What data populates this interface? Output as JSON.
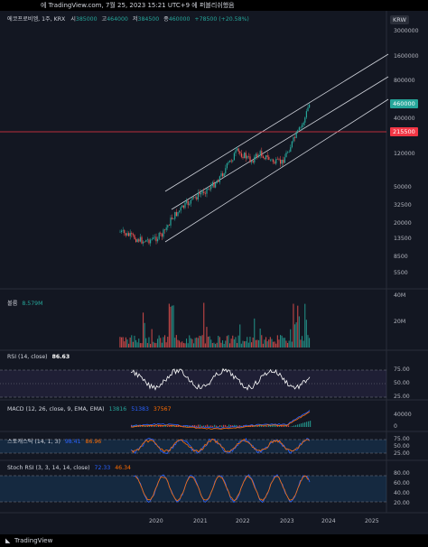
{
  "header": {
    "text": "에 TradingView.com, 7월 25, 2023 15:21 UTC+9 에 퍼블리쉬했음"
  },
  "main_legend": {
    "symbol": "에코프로비엠, 1주, KRX",
    "o_label": "시",
    "o_value": "385000",
    "h_label": "고",
    "h_value": "464000",
    "l_label": "저",
    "l_value": "384500",
    "c_label": "종",
    "c_value": "460000",
    "change": "+78500 (+20.58%)"
  },
  "currency": "KRW",
  "price_axis": [
    "3000000",
    "1600000",
    "800000",
    "400000",
    "200000",
    "120000",
    "50000",
    "32500",
    "20000",
    "13500",
    "8500",
    "5500"
  ],
  "last_price_tag": "460000",
  "hline_tag": "215500",
  "volume": {
    "label": "볼륨",
    "value": "8.579M",
    "axis": [
      "40M",
      "20M"
    ]
  },
  "rsi": {
    "label": "RSI (14, close)",
    "value": "86.63",
    "axis": [
      "75.00",
      "50.00",
      "25.00"
    ]
  },
  "macd": {
    "label": "MACD (12, 26, close, 9, EMA, EMA)",
    "v1": "13816",
    "v2": "51383",
    "v3": "37567",
    "axis": [
      "40000",
      "0"
    ]
  },
  "stoch": {
    "label": "스토캐스틱 (14, 1, 3)",
    "v1": "98.41",
    "v2": "86.96",
    "axis": [
      "75.00",
      "50.00",
      "25.00"
    ]
  },
  "stochrsi": {
    "label": "Stoch RSI (3, 3, 14, 14, close)",
    "v1": "72.33",
    "v2": "46.34",
    "axis": [
      "80.00",
      "60.00",
      "40.00",
      "20.00"
    ]
  },
  "time_axis": [
    "2020",
    "2021",
    "2022",
    "2023",
    "2024",
    "2025"
  ],
  "footer": {
    "logo_text": "TradingView"
  },
  "colors": {
    "bg": "#131722",
    "up": "#26a69a",
    "down": "#ef5350",
    "blue": "#2962ff",
    "hline": "#f23645"
  }
}
